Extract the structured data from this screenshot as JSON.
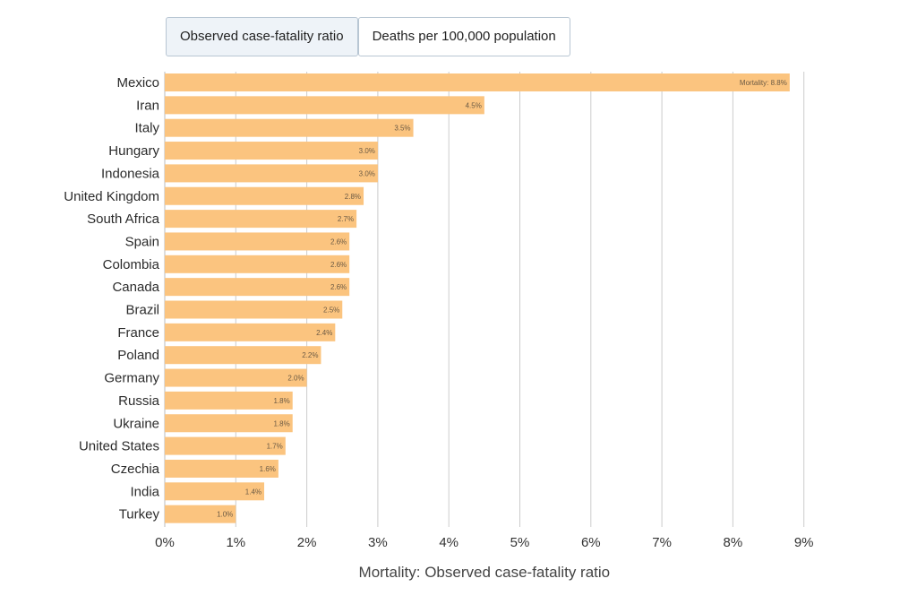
{
  "tabs": [
    {
      "label": "Observed case-fatality ratio",
      "active": true
    },
    {
      "label": "Deaths per 100,000 population",
      "active": false
    }
  ],
  "colors": {
    "bar": "#fbc47f",
    "grid": "#cccccc",
    "tab_border": "#b8c6d3"
  },
  "chart_data": {
    "type": "bar",
    "orientation": "horizontal",
    "categories": [
      "Mexico",
      "Iran",
      "Italy",
      "Hungary",
      "Indonesia",
      "United Kingdom",
      "South Africa",
      "Spain",
      "Colombia",
      "Canada",
      "Brazil",
      "France",
      "Poland",
      "Germany",
      "Russia",
      "Ukraine",
      "United States",
      "Czechia",
      "India",
      "Turkey"
    ],
    "values": [
      8.8,
      4.5,
      3.5,
      3.0,
      3.0,
      2.8,
      2.7,
      2.6,
      2.6,
      2.6,
      2.5,
      2.4,
      2.2,
      2.0,
      1.8,
      1.8,
      1.7,
      1.6,
      1.4,
      1.0
    ],
    "data_labels": [
      "Mortality: 8.8%",
      "4.5%",
      "3.5%",
      "3.0%",
      "3.0%",
      "2.8%",
      "2.7%",
      "2.6%",
      "2.6%",
      "2.6%",
      "2.5%",
      "2.4%",
      "2.2%",
      "2.0%",
      "1.8%",
      "1.8%",
      "1.7%",
      "1.6%",
      "1.4%",
      "1.0%"
    ],
    "x_ticks": [
      "0%",
      "1%",
      "2%",
      "3%",
      "4%",
      "5%",
      "6%",
      "7%",
      "8%",
      "9%"
    ],
    "xlim": [
      0,
      9
    ],
    "xlabel": "Mortality: Observed case-fatality ratio",
    "ylabel": "",
    "title": "",
    "grid": true
  }
}
